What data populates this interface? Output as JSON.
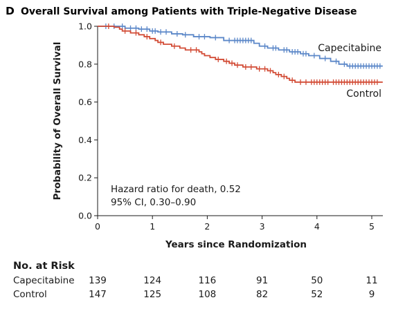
{
  "figure": {
    "panel_letter": "D",
    "title": "Overall Survival among Patients with Triple-Negative Disease"
  },
  "annotation": {
    "line1": "Hazard ratio for death, 0.52",
    "line2": "95% CI, 0.30–0.90"
  },
  "risk_table": {
    "heading": "No. at Risk",
    "rows": [
      {
        "label": "Capecitabine",
        "values": [
          "139",
          "124",
          "116",
          "91",
          "50",
          "11"
        ]
      },
      {
        "label": "Control",
        "values": [
          "147",
          "125",
          "108",
          "82",
          "52",
          "9"
        ]
      }
    ]
  },
  "chart_data": {
    "type": "line",
    "title": "Overall Survival among Patients with Triple-Negative Disease",
    "xlabel": "Years since Randomization",
    "ylabel": "Probability of Overall Survival",
    "xlim": [
      0,
      5.2
    ],
    "ylim": [
      0,
      1.0
    ],
    "x_ticks": [
      0,
      1,
      2,
      3,
      4,
      5
    ],
    "y_ticks": [
      0.0,
      0.2,
      0.4,
      0.6,
      0.8,
      1.0
    ],
    "x_tick_labels": [
      "0",
      "1",
      "2",
      "3",
      "4",
      "5"
    ],
    "y_tick_labels": [
      "0.0",
      "0.2",
      "0.4",
      "0.6",
      "0.8",
      "1.0"
    ],
    "grid": false,
    "series": [
      {
        "name": "Capecitabine",
        "color": "#5b87c8",
        "steps": [
          [
            0,
            1.0
          ],
          [
            0.5,
            0.99
          ],
          [
            0.75,
            0.985
          ],
          [
            0.95,
            0.975
          ],
          [
            1.1,
            0.97
          ],
          [
            1.35,
            0.96
          ],
          [
            1.55,
            0.955
          ],
          [
            1.75,
            0.945
          ],
          [
            2.05,
            0.94
          ],
          [
            2.3,
            0.925
          ],
          [
            2.85,
            0.91
          ],
          [
            2.95,
            0.895
          ],
          [
            3.1,
            0.885
          ],
          [
            3.3,
            0.875
          ],
          [
            3.5,
            0.865
          ],
          [
            3.7,
            0.855
          ],
          [
            3.85,
            0.845
          ],
          [
            4.05,
            0.83
          ],
          [
            4.25,
            0.815
          ],
          [
            4.4,
            0.8
          ],
          [
            4.55,
            0.79
          ],
          [
            5.2,
            0.79
          ]
        ],
        "censor_x": [
          0.15,
          0.3,
          0.45,
          0.6,
          0.7,
          0.8,
          0.9,
          1.0,
          1.05,
          1.15,
          1.25,
          1.45,
          1.6,
          1.85,
          1.95,
          2.15,
          2.4,
          2.5,
          2.55,
          2.6,
          2.65,
          2.7,
          2.75,
          2.8,
          3.05,
          3.2,
          3.25,
          3.4,
          3.45,
          3.55,
          3.6,
          3.65,
          3.75,
          3.8,
          3.95,
          4.15,
          4.35,
          4.5,
          4.6,
          4.65,
          4.7,
          4.75,
          4.8,
          4.85,
          4.9,
          4.95,
          5.0,
          5.05,
          5.1,
          5.15
        ]
      },
      {
        "name": "Control",
        "color": "#d24b35",
        "steps": [
          [
            0,
            1.0
          ],
          [
            0.3,
            0.995
          ],
          [
            0.4,
            0.985
          ],
          [
            0.45,
            0.975
          ],
          [
            0.6,
            0.965
          ],
          [
            0.75,
            0.955
          ],
          [
            0.85,
            0.945
          ],
          [
            0.95,
            0.935
          ],
          [
            1.05,
            0.925
          ],
          [
            1.1,
            0.915
          ],
          [
            1.2,
            0.905
          ],
          [
            1.35,
            0.895
          ],
          [
            1.5,
            0.885
          ],
          [
            1.6,
            0.875
          ],
          [
            1.85,
            0.865
          ],
          [
            1.9,
            0.855
          ],
          [
            1.95,
            0.845
          ],
          [
            2.05,
            0.835
          ],
          [
            2.15,
            0.825
          ],
          [
            2.3,
            0.815
          ],
          [
            2.4,
            0.805
          ],
          [
            2.5,
            0.795
          ],
          [
            2.65,
            0.785
          ],
          [
            2.9,
            0.775
          ],
          [
            3.1,
            0.765
          ],
          [
            3.2,
            0.755
          ],
          [
            3.25,
            0.745
          ],
          [
            3.35,
            0.735
          ],
          [
            3.45,
            0.725
          ],
          [
            3.5,
            0.715
          ],
          [
            3.6,
            0.705
          ],
          [
            5.2,
            0.705
          ]
        ],
        "censor_x": [
          0.2,
          0.5,
          0.7,
          0.9,
          1.15,
          1.4,
          1.7,
          1.8,
          2.2,
          2.35,
          2.45,
          2.55,
          2.7,
          2.8,
          2.95,
          3.05,
          3.15,
          3.3,
          3.4,
          3.55,
          3.7,
          3.8,
          3.9,
          3.95,
          4.0,
          4.05,
          4.1,
          4.15,
          4.2,
          4.3,
          4.35,
          4.4,
          4.45,
          4.5,
          4.55,
          4.6,
          4.65,
          4.7,
          4.75,
          4.8,
          4.85,
          4.9,
          4.95,
          5.0,
          5.05,
          5.1
        ]
      }
    ]
  }
}
